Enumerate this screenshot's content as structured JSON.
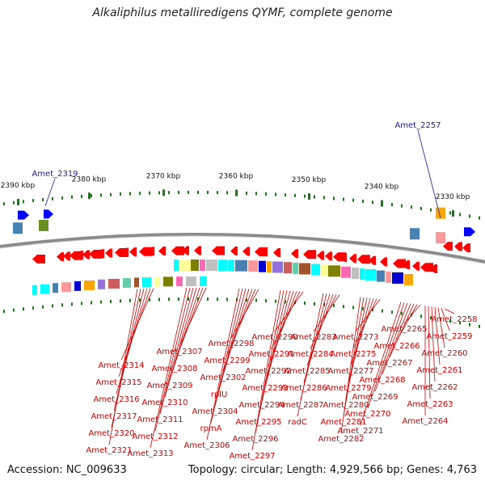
{
  "title": "Alkaliphilus metalliredigens QYMF, complete genome",
  "accession": "Accession: NC_009633",
  "summary": "Topology: circular; Length: 4,929,566 bp; Genes: 4,763",
  "colors": {
    "forward_strand": "#ff0000",
    "reverse_strand": "#0000ff",
    "label_red": "#cc0000",
    "label_blue": "#1a1aa6",
    "backbone": "#808080",
    "tick_green": "#1a7a1a"
  },
  "scale_ticks": [
    "2390 kbp",
    "2380 kbp",
    "2370 kbp",
    "2360 kbp",
    "2350 kbp",
    "2340 kbp",
    "2330 kbp"
  ],
  "top_labels": [
    "Amet_2319",
    "Amet_2257"
  ],
  "bottom_labels": [
    "Amet_2258",
    "Amet_2259",
    "Amet_2260",
    "Amet_2261",
    "Amet_2262",
    "Amet_2263",
    "Amet_2264",
    "Amet_2265",
    "Amet_2266",
    "Amet_2267",
    "Amet_2268",
    "Amet_2269",
    "Amet_2270",
    "Amet_2271",
    "Amet_2273",
    "Amet_2275",
    "Amet_2277",
    "Amet_2279",
    "Amet_2280",
    "Amet_2281",
    "Amet_2282",
    "Amet_2283",
    "Amet_2284",
    "Amet_2285",
    "Amet_2286",
    "Amet_2287",
    "radC",
    "Amet_2290",
    "Amet_2291",
    "Amet_2292",
    "Amet_2293",
    "Amet_2294",
    "Amet_2295",
    "Amet_2296",
    "Amet_2297",
    "Amet_2298",
    "Amet_2299",
    "Amet_2302",
    "rplU",
    "Amet_2304",
    "rpmA",
    "Amet_2306",
    "Amet_2307",
    "Amet_2308",
    "Amet_2309",
    "Amet_2310",
    "Amet_2311",
    "Amet_2312",
    "Amet_2313",
    "Amet_2314",
    "Amet_2315",
    "Amet_2316",
    "Amet_2317",
    "Amet_2320",
    "Amet_2321"
  ]
}
